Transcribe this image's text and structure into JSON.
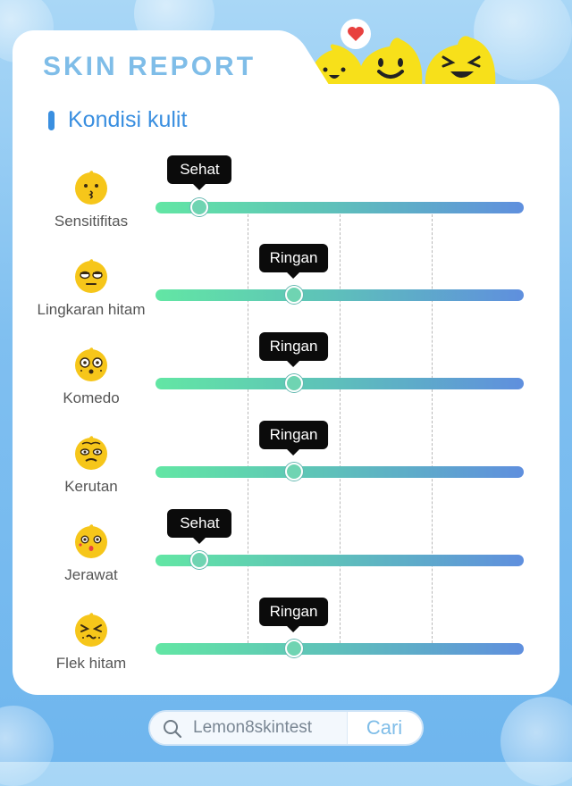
{
  "header": {
    "title": "SKIN REPORT",
    "section_title": "Kondisi kulit"
  },
  "slider_levels": [
    "Sehat",
    "Ringan"
  ],
  "rows": [
    {
      "label": "Sensitifitas",
      "status": "Sehat",
      "level": 0.12,
      "icon": "kiss-face-icon"
    },
    {
      "label": "Lingkaran hitam",
      "status": "Ringan",
      "level": 0.375,
      "icon": "tired-face-icon"
    },
    {
      "label": "Komedo",
      "status": "Ringan",
      "level": 0.375,
      "icon": "dotted-face-icon"
    },
    {
      "label": "Kerutan",
      "status": "Ringan",
      "level": 0.375,
      "icon": "wrinkled-face-icon"
    },
    {
      "label": "Jerawat",
      "status": "Sehat",
      "level": 0.12,
      "icon": "surprised-face-icon"
    },
    {
      "label": "Flek hitam",
      "status": "Ringan",
      "level": 0.375,
      "icon": "squint-face-icon"
    }
  ],
  "search": {
    "value": "Lemon8skintest",
    "button_label": "Cari"
  },
  "colors": {
    "accent": "#3a8fe0",
    "title": "#7fbde8",
    "mascot": "#f7e01a",
    "tooltip": "#0b0b0b",
    "track_start": "#62e6a4",
    "track_end": "#5f8fde"
  }
}
